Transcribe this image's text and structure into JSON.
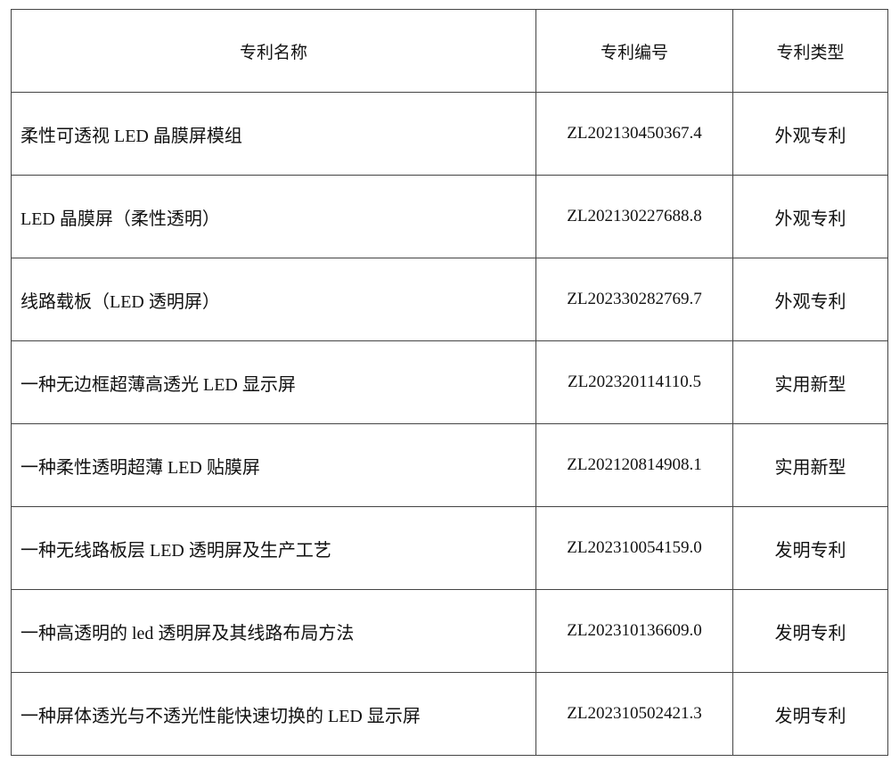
{
  "table": {
    "headers": [
      "专利名称",
      "专利编号",
      "专利类型"
    ],
    "rows": [
      {
        "name": "柔性可透视 LED 晶膜屏模组",
        "number": "ZL202130450367.4",
        "type": "外观专利"
      },
      {
        "name": "LED 晶膜屏（柔性透明）",
        "number": "ZL202130227688.8",
        "type": "外观专利"
      },
      {
        "name": "线路载板（LED 透明屏）",
        "number": "ZL202330282769.7",
        "type": "外观专利"
      },
      {
        "name": "一种无边框超薄高透光 LED 显示屏",
        "number": "ZL202320114110.5",
        "type": "实用新型"
      },
      {
        "name": "一种柔性透明超薄 LED 贴膜屏",
        "number": "ZL202120814908.1",
        "type": "实用新型"
      },
      {
        "name": "一种无线路板层 LED 透明屏及生产工艺",
        "number": "ZL202310054159.0",
        "type": "发明专利"
      },
      {
        "name": "一种高透明的 led 透明屏及其线路布局方法",
        "number": "ZL202310136609.0",
        "type": "发明专利"
      },
      {
        "name": "一种屏体透光与不透光性能快速切换的 LED 显示屏",
        "number": "ZL202310502421.3",
        "type": "发明专利"
      }
    ]
  }
}
